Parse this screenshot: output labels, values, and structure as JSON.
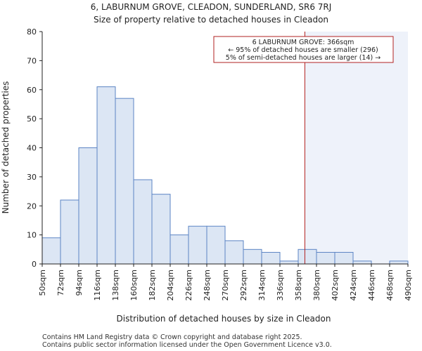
{
  "page": {
    "title_line1": "6, LABURNUM GROVE, CLEADON, SUNDERLAND, SR6 7RJ",
    "title_line2": "Size of property relative to detached houses in Cleadon",
    "footer_line1": "Contains HM Land Registry data © Crown copyright and database right 2025.",
    "footer_line2": "Contains public sector information licensed under the Open Government Licence v3.0."
  },
  "chart_data": {
    "type": "bar",
    "title": "Size of property relative to detached houses in Cleadon",
    "xlabel": "Distribution of detached houses by size in Cleadon",
    "ylabel": "Number of detached properties",
    "ylim": [
      0,
      80
    ],
    "yticks": [
      0,
      10,
      20,
      30,
      40,
      50,
      60,
      70,
      80
    ],
    "bin_edges": [
      50,
      72,
      94,
      116,
      138,
      160,
      182,
      204,
      226,
      248,
      270,
      292,
      314,
      336,
      358,
      380,
      402,
      424,
      446,
      468,
      490
    ],
    "tick_labels": [
      "50sqm",
      "72sqm",
      "94sqm",
      "116sqm",
      "138sqm",
      "160sqm",
      "182sqm",
      "204sqm",
      "226sqm",
      "248sqm",
      "270sqm",
      "292sqm",
      "314sqm",
      "336sqm",
      "358sqm",
      "380sqm",
      "402sqm",
      "424sqm",
      "446sqm",
      "468sqm",
      "490sqm"
    ],
    "values": [
      9,
      22,
      40,
      61,
      57,
      29,
      24,
      10,
      13,
      13,
      8,
      5,
      4,
      1,
      5,
      4,
      4,
      1,
      0,
      1
    ],
    "marker": {
      "value": 366,
      "label": "6 LABURNUM GROVE: 366sqm"
    },
    "annotation": [
      "6 LABURNUM GROVE: 366sqm",
      "← 95% of detached houses are smaller (296)",
      "5% of semi-detached houses are larger (14) →"
    ],
    "colors": {
      "bar_fill": "#dce6f4",
      "bar_stroke": "#5b84c4",
      "marker": "#b22222",
      "highlight": "#eef2fa",
      "axis": "#222222"
    }
  }
}
